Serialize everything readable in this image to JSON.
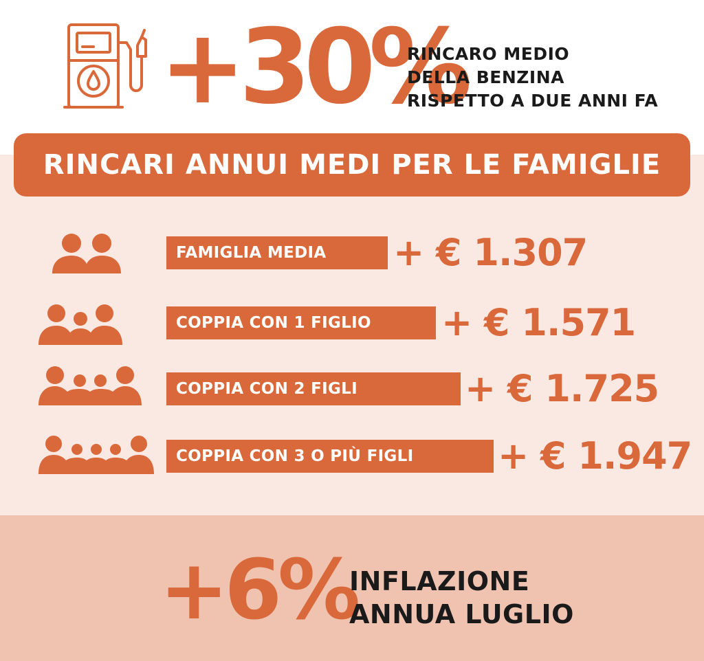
{
  "header": {
    "pump_icon": "fuel-pump-icon",
    "headline_value": "+30%",
    "caption_lines": [
      "RINCARO MEDIO",
      "DELLA BENZINA",
      "RISPETTO A DUE ANNI FA"
    ]
  },
  "banner": {
    "title": "RINCARI ANNUI MEDI PER LE FAMIGLIE"
  },
  "rows": [
    {
      "icon": "two-people-icon",
      "label": "FAMIGLIA MEDIA",
      "value": "+ € 1.307",
      "amount": 1307
    },
    {
      "icon": "family-one-child-icon",
      "label": "COPPIA CON 1 FIGLIO",
      "value": "+ € 1.571",
      "amount": 1571
    },
    {
      "icon": "family-two-children-icon",
      "label": "COPPIA CON 2 FIGLI",
      "value": "+ € 1.725",
      "amount": 1725
    },
    {
      "icon": "family-three-children-icon",
      "label": "COPPIA CON 3 O PIÙ FIGLI",
      "value": "+ € 1.947",
      "amount": 1947
    }
  ],
  "inflation": {
    "value": "+6%",
    "caption_lines": [
      "INFLAZIONE",
      "ANNUA LUGLIO"
    ]
  },
  "colors": {
    "accent": "#d9693a",
    "panel_light": "#fae8e2",
    "panel_dark": "#f0c3b1",
    "text_dark": "#1a1a1a"
  }
}
